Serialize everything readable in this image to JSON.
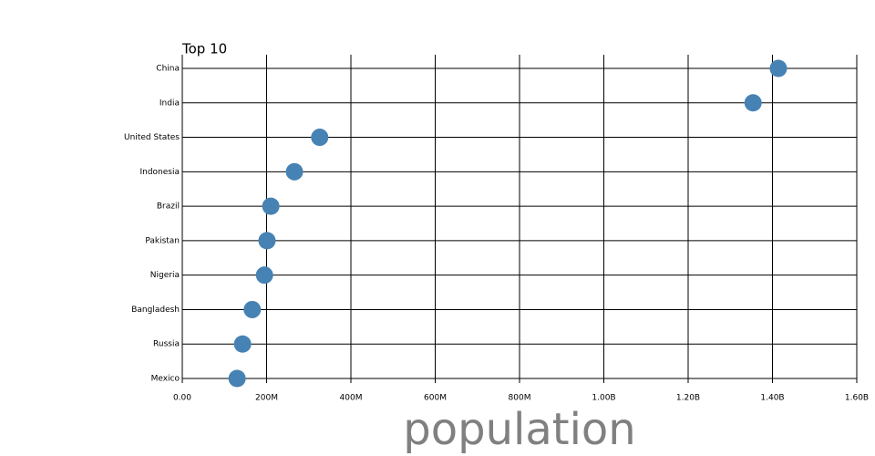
{
  "chart_data": {
    "type": "dot",
    "title": "Top 10",
    "x_label": "population",
    "categories": [
      "China",
      "India",
      "United States",
      "Indonesia",
      "Brazil",
      "Pakistan",
      "Nigeria",
      "Bangladesh",
      "Russia",
      "Mexico"
    ],
    "values": [
      1414000000,
      1354000000,
      326000000,
      266000000,
      210000000,
      201000000,
      195000000,
      166000000,
      143000000,
      130000000
    ],
    "color": "#4682b4",
    "xlim": [
      0,
      1600000000
    ],
    "xticks": [
      {
        "value": 0,
        "label": "0.00"
      },
      {
        "value": 200000000,
        "label": "200M"
      },
      {
        "value": 400000000,
        "label": "400M"
      },
      {
        "value": 600000000,
        "label": "600M"
      },
      {
        "value": 800000000,
        "label": "800M"
      },
      {
        "value": 1000000000,
        "label": "1.00B"
      },
      {
        "value": 1200000000,
        "label": "1.20B"
      },
      {
        "value": 1400000000,
        "label": "1.40B"
      },
      {
        "value": 1600000000,
        "label": "1.60B"
      }
    ],
    "grid": true
  }
}
